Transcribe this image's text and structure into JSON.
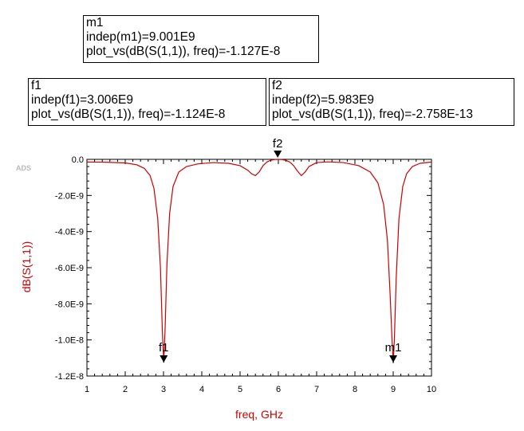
{
  "markers": [
    {
      "id": "m1",
      "name": "m1",
      "indep_line": "indep(m1)=9.001E9",
      "value_line": "plot_vs(dB(S(1,1)), freq)=-1.127E-8",
      "x": 9.001,
      "y": -1.127e-08
    },
    {
      "id": "f1",
      "name": "f1",
      "indep_line": "indep(f1)=3.006E9",
      "value_line": "plot_vs(dB(S(1,1)), freq)=-1.124E-8",
      "x": 3.006,
      "y": -1.124e-08
    },
    {
      "id": "f2",
      "name": "f2",
      "indep_line": "indep(f2)=5.983E9",
      "value_line": "plot_vs(dB(S(1,1)), freq)=-2.758E-13",
      "x": 5.983,
      "y": -2.758e-13
    }
  ],
  "logo": "ADS",
  "chart_data": {
    "type": "line",
    "title": "",
    "xlabel": "freq, GHz",
    "ylabel": "dB(S(1,1))",
    "xlim": [
      1,
      10
    ],
    "ylim": [
      -1.2e-08,
      0
    ],
    "x_ticks": [
      1,
      2,
      3,
      4,
      5,
      6,
      7,
      8,
      9,
      10
    ],
    "x_tick_labels": [
      "1",
      "2",
      "3",
      "4",
      "5",
      "6",
      "7",
      "8",
      "9",
      "10"
    ],
    "y_ticks": [
      0,
      -2e-09,
      -4e-09,
      -6e-09,
      -8e-09,
      -1e-08,
      -1.2e-08
    ],
    "y_tick_labels": [
      "0.0",
      "-2.0E-9",
      "-4.0E-9",
      "-6.0E-9",
      "-8.0E-9",
      "-1.0E-8",
      "-1.2E-8"
    ],
    "grid": false,
    "series": [
      {
        "color": "#cc0000",
        "x": [
          1.0,
          1.5,
          2.0,
          2.3,
          2.5,
          2.65,
          2.75,
          2.85,
          2.92,
          2.97,
          3.006,
          3.04,
          3.09,
          3.16,
          3.25,
          3.4,
          3.6,
          3.9,
          4.3,
          4.7,
          5.0,
          5.2,
          5.3,
          5.4,
          5.5,
          5.6,
          5.7,
          5.8,
          5.9,
          5.983,
          6.1,
          6.2,
          6.3,
          6.4,
          6.5,
          6.6,
          6.7,
          6.8,
          7.0,
          7.3,
          7.7,
          8.1,
          8.4,
          8.6,
          8.75,
          8.85,
          8.92,
          8.97,
          9.001,
          9.03,
          9.08,
          9.15,
          9.25,
          9.35,
          9.5,
          9.7,
          10.0
        ],
        "y": [
          -1.5e-10,
          -1.6e-10,
          -2e-10,
          -3e-10,
          -5e-10,
          -9e-10,
          -1.6e-09,
          -3.3e-09,
          -6e-09,
          -9.5e-09,
          -1.124e-08,
          -9.5e-09,
          -5.8e-09,
          -3e-09,
          -1.5e-09,
          -7e-10,
          -4e-10,
          -2.5e-10,
          -1.8e-10,
          -2.2e-10,
          -3.5e-10,
          -6e-10,
          -8e-10,
          -9e-10,
          -7e-10,
          -3.5e-10,
          -1.5e-10,
          -5e-11,
          -1e-11,
          0,
          -1e-11,
          -6e-11,
          -1.5e-10,
          -3.5e-10,
          -6.5e-10,
          -9e-10,
          -7e-10,
          -4e-10,
          -1.8e-10,
          -1.4e-10,
          -1.8e-10,
          -3.5e-10,
          -7e-10,
          -1.3e-09,
          -2.5e-09,
          -4.5e-09,
          -7.5e-09,
          -1e-08,
          -1.127e-08,
          -1e-08,
          -6.5e-09,
          -3.3e-09,
          -1.5e-09,
          -8e-10,
          -4e-10,
          -2.2e-10,
          -1.5e-10
        ]
      }
    ]
  }
}
